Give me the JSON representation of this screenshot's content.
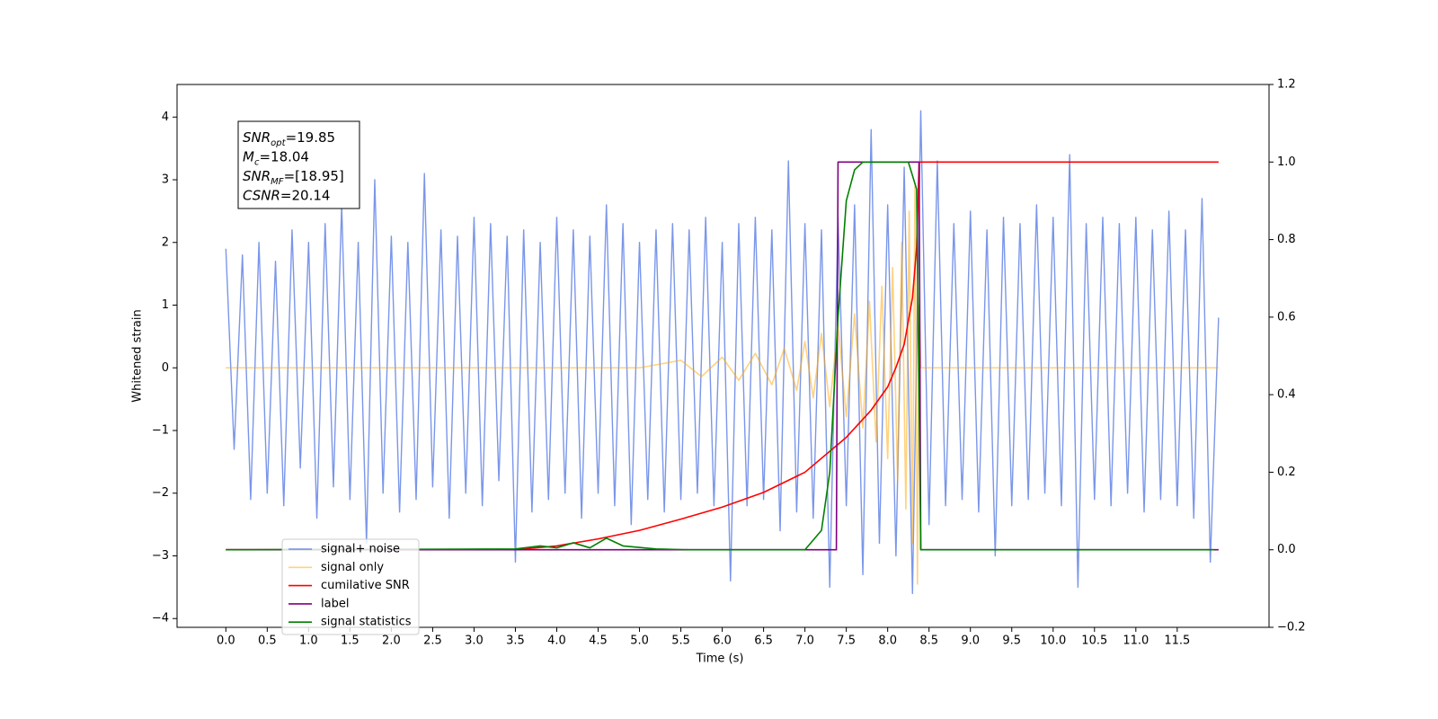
{
  "chart_data": {
    "type": "line",
    "xlabel": "Time (s)",
    "ylabel": "Whitened strain",
    "xlim": [
      -0.59,
      12.61
    ],
    "ylim": [
      -4.14,
      4.52
    ],
    "y2lim": [
      -0.2,
      1.2
    ],
    "xticks": [
      {
        "value": 0,
        "label": "0.0"
      },
      0.5,
      {
        "value": 1,
        "label": "1.0"
      },
      1.5,
      {
        "value": 2,
        "label": "2.0"
      },
      2.5,
      {
        "value": 3,
        "label": "3.0"
      },
      3.5,
      {
        "value": 4,
        "label": "4.0"
      },
      4.5,
      {
        "value": 5,
        "label": "5.0"
      },
      5.5,
      {
        "value": 6,
        "label": "6.0"
      },
      6.5,
      {
        "value": 7,
        "label": "7.0"
      },
      7.5,
      {
        "value": 8,
        "label": "8.0"
      },
      8.5,
      {
        "value": 9,
        "label": "9.0"
      },
      9.5,
      {
        "value": 10,
        "label": "10.0"
      },
      10.5,
      {
        "value": 11,
        "label": "11.0"
      },
      11.5
    ],
    "yticks": [
      {
        "value": -4,
        "label": "−4"
      },
      {
        "value": -3,
        "label": "−3"
      },
      {
        "value": -2,
        "label": "−2"
      },
      {
        "value": -1,
        "label": "−1"
      },
      0,
      1,
      2,
      3,
      4
    ],
    "y2ticks": [
      {
        "value": -0.2,
        "label": "−0.2"
      },
      {
        "value": 0,
        "label": "0.0"
      },
      0.2,
      0.4,
      0.6,
      0.8,
      {
        "value": 1,
        "label": "1.0"
      },
      1.2
    ],
    "legend": "lower left",
    "annotations": [
      {
        "symbol": "SNR",
        "subscript": "opt",
        "text": "=19.85"
      },
      {
        "symbol": "M",
        "subscript": "c",
        "text": "=18.04"
      },
      {
        "symbol": "SNR",
        "subscript": "MF",
        "text": "=[18.95]"
      },
      {
        "symbol": "CSNR",
        "text": "=20.14"
      }
    ],
    "series": [
      {
        "name": "signal+ noise",
        "color": "#4169e1",
        "x": [
          0,
          0.1,
          0.2,
          0.3,
          0.4,
          0.5,
          0.6,
          0.7,
          0.8,
          0.9,
          1,
          1.1,
          1.2,
          1.3,
          1.4,
          1.5,
          1.6,
          1.7,
          1.8,
          1.9,
          2,
          2.1,
          2.2,
          2.3,
          2.4,
          2.5,
          2.6,
          2.7,
          2.8,
          2.9,
          3,
          3.1,
          3.2,
          3.3,
          3.4,
          3.5,
          3.6,
          3.7,
          3.8,
          3.9,
          4,
          4.1,
          4.2,
          4.3,
          4.4,
          4.5,
          4.6,
          4.7,
          4.8,
          4.9,
          5,
          5.1,
          5.2,
          5.3,
          5.4,
          5.5,
          5.6,
          5.7,
          5.8,
          5.9,
          6,
          6.1,
          6.2,
          6.3,
          6.4,
          6.5,
          6.6,
          6.7,
          6.8,
          6.9,
          7,
          7.1,
          7.2,
          7.3,
          7.4,
          7.5,
          7.6,
          7.7,
          7.8,
          7.9,
          8,
          8.1,
          8.2,
          8.3,
          8.4,
          8.5,
          8.6,
          8.7,
          8.8,
          8.9,
          9,
          9.1,
          9.2,
          9.3,
          9.4,
          9.5,
          9.6,
          9.7,
          9.8,
          9.9,
          10,
          10.1,
          10.2,
          10.3,
          10.4,
          10.5,
          10.6,
          10.7,
          10.8,
          10.9,
          11,
          11.1,
          11.2,
          11.3,
          11.4,
          11.5,
          11.6,
          11.7,
          11.8,
          11.9,
          12
        ],
        "values": [
          1.9,
          -1.3,
          1.8,
          -2.1,
          2.0,
          -2.0,
          1.7,
          -2.2,
          2.2,
          -1.6,
          2.0,
          -2.4,
          2.3,
          -1.9,
          2.6,
          -2.1,
          2.0,
          -2.8,
          3.0,
          -2.0,
          2.1,
          -2.3,
          2.0,
          -2.1,
          3.1,
          -1.9,
          2.2,
          -2.4,
          2.1,
          -2.0,
          2.4,
          -2.2,
          2.3,
          -1.8,
          2.1,
          -3.1,
          2.2,
          -2.3,
          2.0,
          -2.1,
          2.4,
          -2.0,
          2.2,
          -2.4,
          2.1,
          -2.0,
          2.6,
          -2.2,
          2.3,
          -2.5,
          2.0,
          -2.1,
          2.2,
          -2.3,
          2.3,
          -2.1,
          2.2,
          -2.0,
          2.4,
          -2.2,
          2.0,
          -3.4,
          2.3,
          -2.2,
          2.4,
          -2.1,
          2.2,
          -2.6,
          3.3,
          -2.3,
          2.3,
          -2.4,
          2.2,
          -3.5,
          2.4,
          -2.2,
          2.6,
          -3.3,
          3.8,
          -2.8,
          2.6,
          -3.0,
          3.2,
          -3.6,
          4.1,
          -2.5,
          3.3,
          -2.2,
          2.3,
          -2.1,
          2.5,
          -2.3,
          2.2,
          -3.0,
          2.4,
          -2.2,
          2.3,
          -2.1,
          2.6,
          -2.0,
          2.4,
          -2.2,
          3.4,
          -3.5,
          2.3,
          -2.1,
          2.4,
          -2.2,
          2.3,
          -2.0,
          2.4,
          -2.3,
          2.2,
          -2.1,
          2.5,
          -2.2,
          2.2,
          -2.4,
          2.7,
          -3.1,
          0.8
        ]
      },
      {
        "name": "signal only",
        "color": "#ffa500",
        "x": [
          0,
          5.0,
          5.5,
          5.75,
          6.0,
          6.2,
          6.4,
          6.6,
          6.75,
          6.9,
          7.0,
          7.1,
          7.2,
          7.3,
          7.4,
          7.5,
          7.6,
          7.7,
          7.78,
          7.86,
          7.93,
          8.0,
          8.06,
          8.12,
          8.17,
          8.22,
          8.26,
          8.3,
          8.33,
          8.36,
          8.38,
          8.4,
          12.0
        ],
        "values": [
          0,
          0,
          0.12,
          -0.14,
          0.17,
          -0.2,
          0.23,
          -0.27,
          0.31,
          -0.36,
          0.42,
          -0.48,
          0.55,
          -0.62,
          0.7,
          -0.78,
          0.86,
          -0.96,
          1.06,
          -1.18,
          1.3,
          -1.45,
          1.6,
          -1.8,
          2.0,
          -2.25,
          2.5,
          -2.8,
          2.9,
          -3.45,
          1.0,
          0,
          0
        ]
      },
      {
        "name": "cumilative SNR",
        "color": "#ff0000",
        "axis": "y2",
        "x": [
          0,
          3.5,
          4.0,
          4.5,
          5.0,
          5.5,
          6.0,
          6.5,
          7.0,
          7.5,
          7.8,
          8.0,
          8.1,
          8.2,
          8.3,
          8.35,
          8.38,
          8.4,
          12.0
        ],
        "values": [
          0,
          0,
          0.01,
          0.028,
          0.05,
          0.079,
          0.11,
          0.148,
          0.2,
          0.29,
          0.36,
          0.42,
          0.47,
          0.53,
          0.65,
          0.78,
          1.0,
          1.0,
          1.0
        ]
      },
      {
        "name": "label",
        "color": "#800080",
        "axis": "y2",
        "x": [
          0,
          7.38,
          7.4,
          8.38,
          8.4,
          12.0
        ],
        "values": [
          0,
          0,
          1,
          1,
          0,
          0
        ]
      },
      {
        "name": "signal statistics",
        "color": "#008000",
        "axis": "y2",
        "x": [
          0,
          3.5,
          3.8,
          4.0,
          4.2,
          4.4,
          4.6,
          4.8,
          5.2,
          5.6,
          7.0,
          7.2,
          7.3,
          7.4,
          7.5,
          7.6,
          7.7,
          8.25,
          8.35,
          8.4,
          11.95
        ],
        "values": [
          0,
          0.002,
          0.01,
          0.005,
          0.018,
          0.005,
          0.03,
          0.01,
          0.002,
          0,
          0,
          0.05,
          0.2,
          0.6,
          0.9,
          0.98,
          1,
          1,
          0.93,
          0,
          0
        ]
      }
    ]
  }
}
